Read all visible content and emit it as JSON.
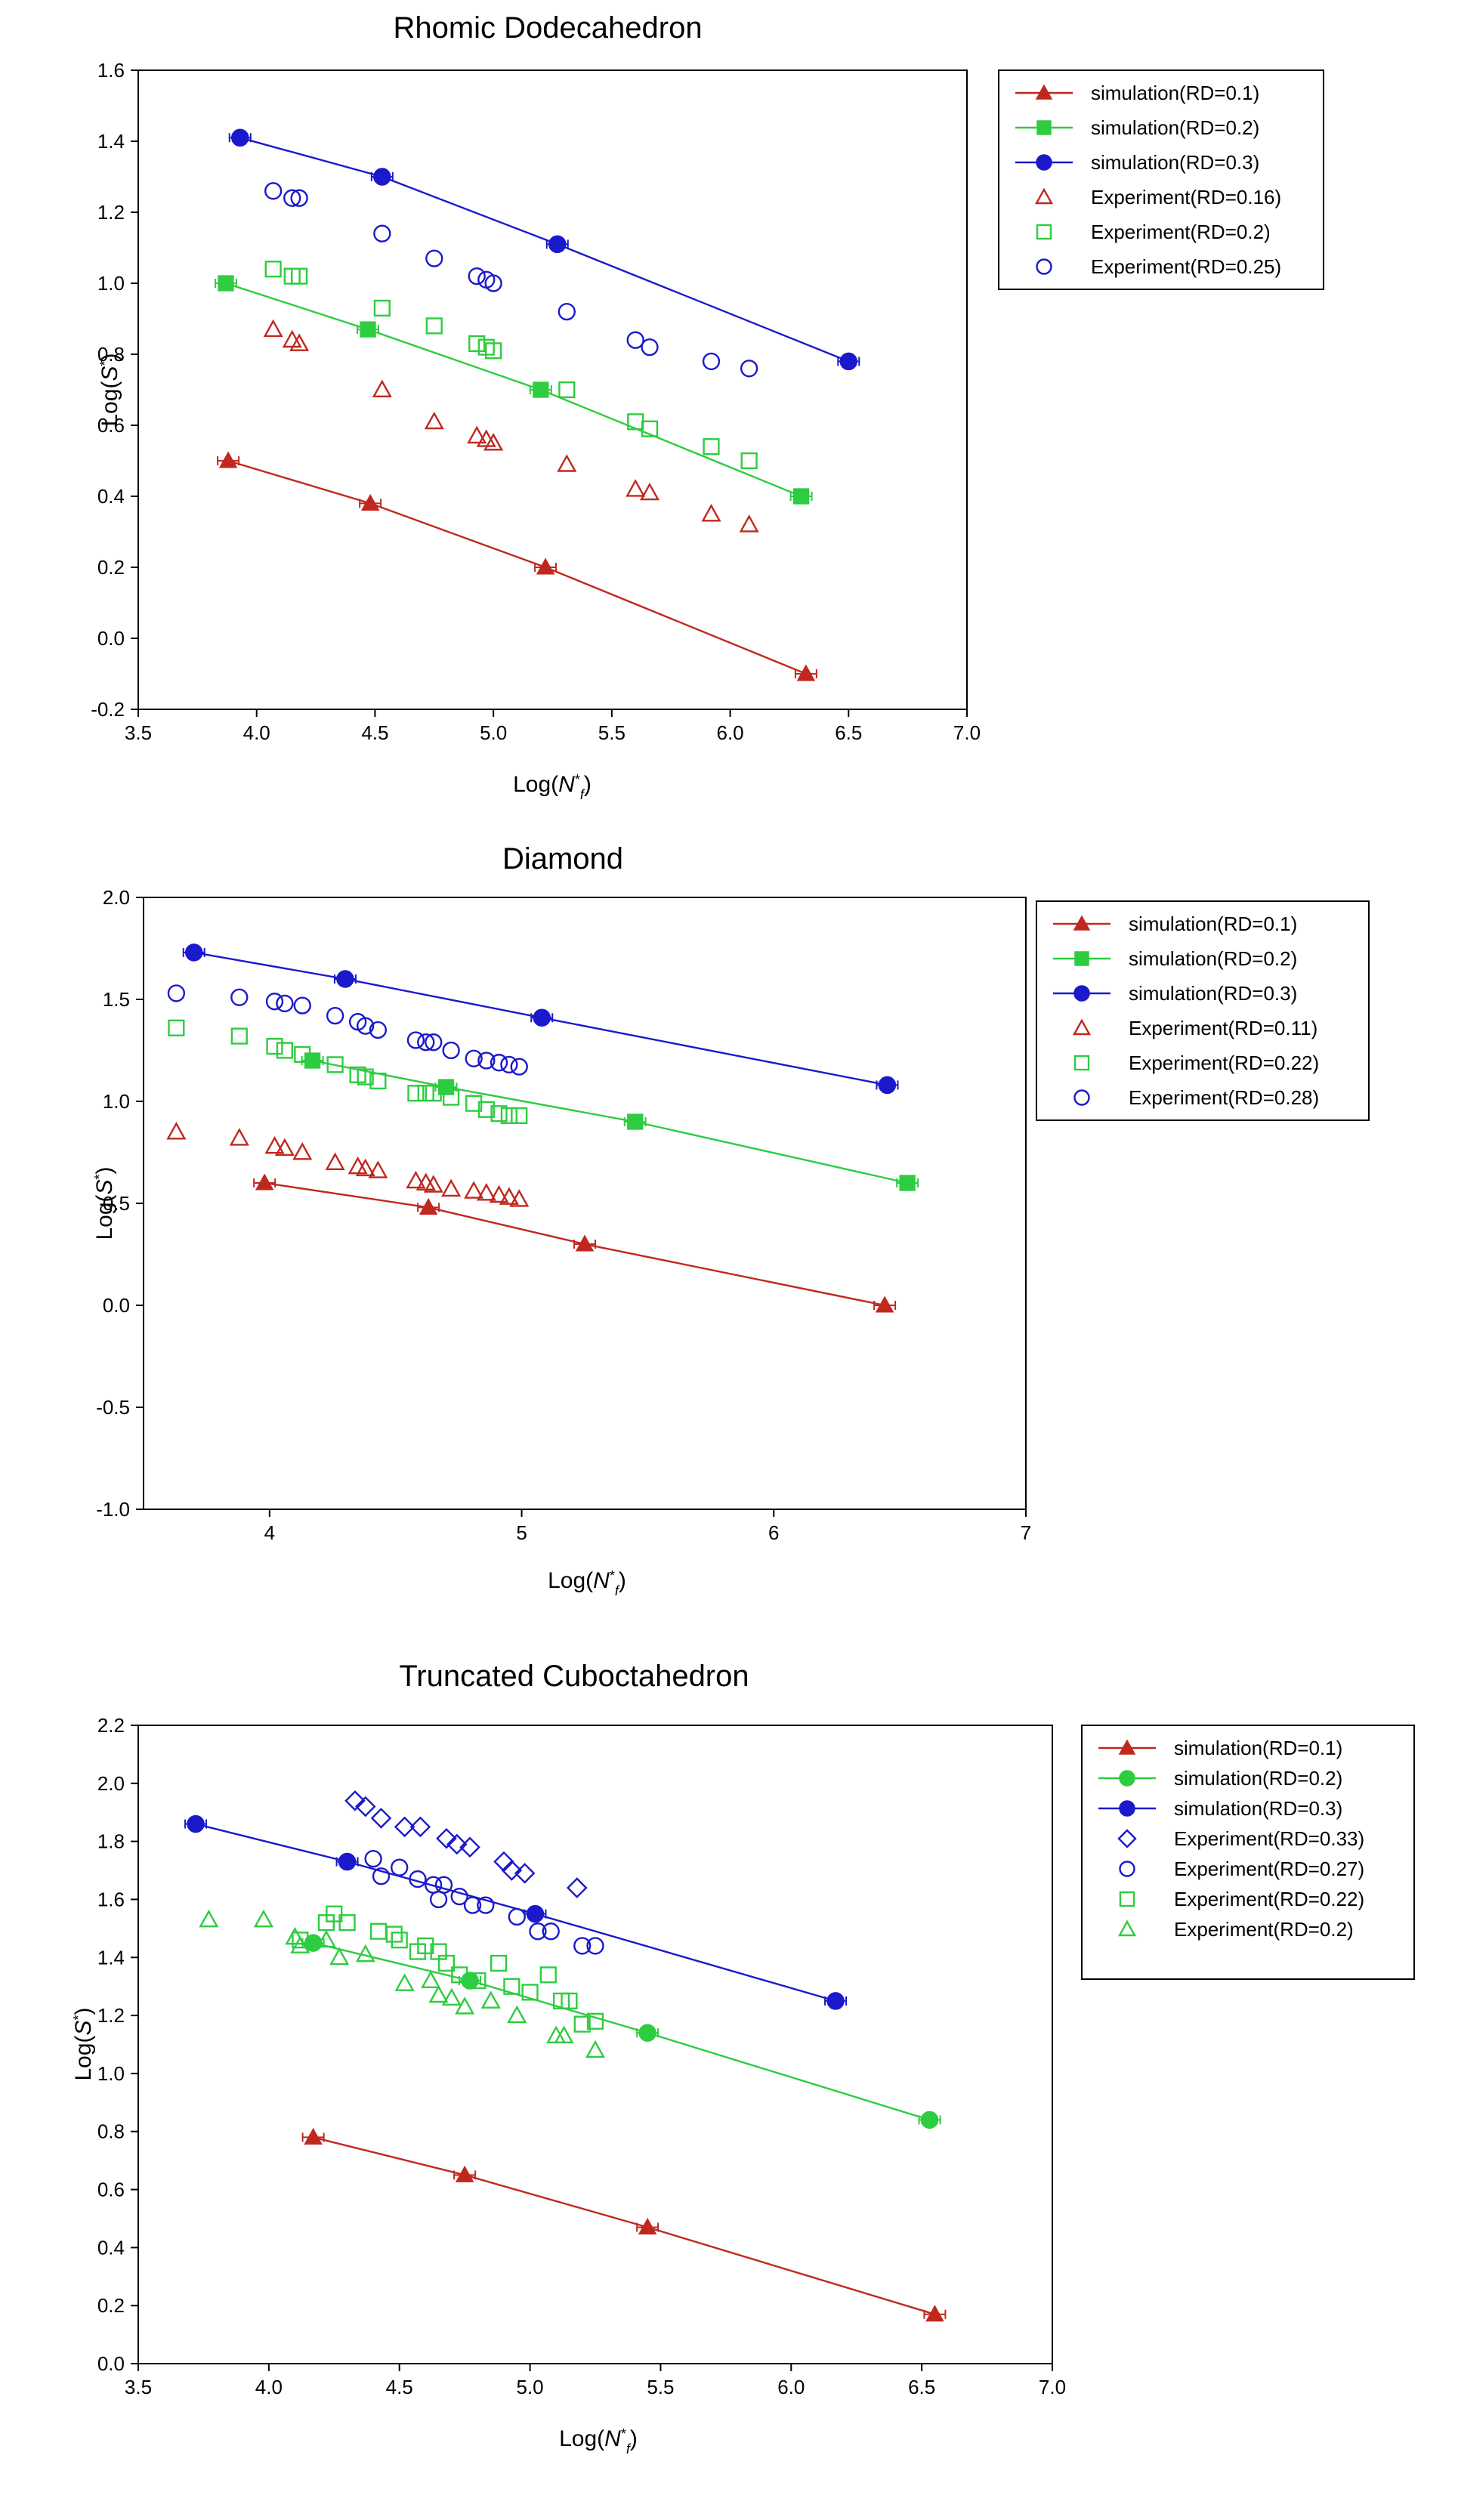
{
  "chart_data": [
    {
      "type": "scatter",
      "title": "Rhomic Dodecahedron",
      "xlabel": "Log(N*f)",
      "ylabel": "Log(S*)",
      "xlim": [
        3.5,
        7.0
      ],
      "ylim": [
        -0.2,
        1.6
      ],
      "xticks": [
        "3.5",
        "4.0",
        "4.5",
        "5.0",
        "5.5",
        "6.0",
        "6.5",
        "7.0"
      ],
      "yticks": [
        "-0.2",
        "0.0",
        "0.2",
        "0.4",
        "0.6",
        "0.8",
        "1.0",
        "1.2",
        "1.4",
        "1.6"
      ],
      "series": [
        {
          "name": "simulation(RD=0.1)",
          "kind": "line",
          "marker": "triangle-filled",
          "color": "#c0281e",
          "x": [
            3.88,
            4.48,
            5.22,
            6.32
          ],
          "y": [
            0.5,
            0.38,
            0.2,
            -0.1
          ]
        },
        {
          "name": "simulation(RD=0.2)",
          "kind": "line",
          "marker": "square-filled",
          "color": "#2ecc40",
          "x": [
            3.87,
            4.47,
            5.2,
            6.3
          ],
          "y": [
            1.0,
            0.87,
            0.7,
            0.4
          ]
        },
        {
          "name": "simulation(RD=0.3)",
          "kind": "line",
          "marker": "circle-filled",
          "color": "#1a1acc",
          "x": [
            3.93,
            4.53,
            5.27,
            6.5
          ],
          "y": [
            1.41,
            1.3,
            1.11,
            0.78
          ]
        },
        {
          "name": "Experiment(RD=0.16)",
          "kind": "scatter",
          "marker": "triangle-open",
          "color": "#c0281e",
          "x": [
            4.07,
            4.15,
            4.18,
            4.53,
            4.75,
            4.93,
            4.97,
            5.0,
            5.31,
            5.6,
            5.66,
            5.92,
            6.08
          ],
          "y": [
            0.87,
            0.84,
            0.83,
            0.7,
            0.61,
            0.57,
            0.56,
            0.55,
            0.49,
            0.42,
            0.41,
            0.35,
            0.32
          ]
        },
        {
          "name": "Experiment(RD=0.2)",
          "kind": "scatter",
          "marker": "square-open",
          "color": "#2ecc40",
          "x": [
            4.07,
            4.15,
            4.18,
            4.53,
            4.75,
            4.93,
            4.97,
            5.0,
            5.31,
            5.6,
            5.66,
            5.92,
            6.08
          ],
          "y": [
            1.04,
            1.02,
            1.02,
            0.93,
            0.88,
            0.83,
            0.82,
            0.81,
            0.7,
            0.61,
            0.59,
            0.54,
            0.5
          ]
        },
        {
          "name": "Experiment(RD=0.25)",
          "kind": "scatter",
          "marker": "circle-open",
          "color": "#1a1acc",
          "x": [
            4.07,
            4.15,
            4.18,
            4.53,
            4.75,
            4.93,
            4.97,
            5.0,
            5.31,
            5.6,
            5.66,
            5.92,
            6.08
          ],
          "y": [
            1.26,
            1.24,
            1.24,
            1.14,
            1.07,
            1.02,
            1.01,
            1.0,
            0.92,
            0.84,
            0.82,
            0.78,
            0.76
          ]
        }
      ]
    },
    {
      "type": "scatter",
      "title": "Diamond",
      "xlabel": "Log(N*f)",
      "ylabel": "Log(S*)",
      "xlim": [
        3.5,
        7.0
      ],
      "ylim": [
        -1.0,
        2.0
      ],
      "xticks": [
        "4",
        "5",
        "6",
        "7"
      ],
      "yticks": [
        "-1.0",
        "-0.5",
        "0.0",
        "0.5",
        "1.0",
        "1.5",
        "2.0"
      ],
      "series": [
        {
          "name": "simulation(RD=0.1)",
          "kind": "line",
          "marker": "triangle-filled",
          "color": "#c0281e",
          "x": [
            3.98,
            4.63,
            5.25,
            6.44
          ],
          "y": [
            0.6,
            0.48,
            0.3,
            0.0
          ]
        },
        {
          "name": "simulation(RD=0.2)",
          "kind": "line",
          "marker": "square-filled",
          "color": "#2ecc40",
          "x": [
            4.17,
            4.7,
            5.45,
            6.53
          ],
          "y": [
            1.2,
            1.07,
            0.9,
            0.6
          ]
        },
        {
          "name": "simulation(RD=0.3)",
          "kind": "line",
          "marker": "circle-filled",
          "color": "#1a1acc",
          "x": [
            3.7,
            4.3,
            5.08,
            6.45
          ],
          "y": [
            1.73,
            1.6,
            1.41,
            1.08
          ]
        },
        {
          "name": "Experiment(RD=0.11)",
          "kind": "scatter",
          "marker": "triangle-open",
          "color": "#c0281e",
          "x": [
            3.63,
            3.88,
            4.02,
            4.06,
            4.13,
            4.26,
            4.35,
            4.38,
            4.43,
            4.58,
            4.62,
            4.65,
            4.72,
            4.81,
            4.86,
            4.91,
            4.95,
            4.99
          ],
          "y": [
            0.85,
            0.82,
            0.78,
            0.77,
            0.75,
            0.7,
            0.68,
            0.67,
            0.66,
            0.61,
            0.6,
            0.59,
            0.57,
            0.56,
            0.55,
            0.54,
            0.53,
            0.52
          ]
        },
        {
          "name": "Experiment(RD=0.22)",
          "kind": "scatter",
          "marker": "square-open",
          "color": "#2ecc40",
          "x": [
            3.63,
            3.88,
            4.02,
            4.06,
            4.13,
            4.26,
            4.35,
            4.38,
            4.43,
            4.58,
            4.62,
            4.65,
            4.72,
            4.81,
            4.86,
            4.91,
            4.95,
            4.99
          ],
          "y": [
            1.36,
            1.32,
            1.27,
            1.25,
            1.23,
            1.18,
            1.13,
            1.12,
            1.1,
            1.04,
            1.04,
            1.04,
            1.02,
            0.99,
            0.96,
            0.94,
            0.93,
            0.93
          ]
        },
        {
          "name": "Experiment(RD=0.28)",
          "kind": "scatter",
          "marker": "circle-open",
          "color": "#1a1acc",
          "x": [
            3.63,
            3.88,
            4.02,
            4.06,
            4.13,
            4.26,
            4.35,
            4.38,
            4.43,
            4.58,
            4.62,
            4.65,
            4.72,
            4.81,
            4.86,
            4.91,
            4.95,
            4.99
          ],
          "y": [
            1.53,
            1.51,
            1.49,
            1.48,
            1.47,
            1.42,
            1.39,
            1.37,
            1.35,
            1.3,
            1.29,
            1.29,
            1.25,
            1.21,
            1.2,
            1.19,
            1.18,
            1.17
          ]
        }
      ]
    },
    {
      "type": "scatter",
      "title": "Truncated Cuboctahedron",
      "xlabel": "Log(N*f)",
      "ylabel": "Log(S*)",
      "xlim": [
        3.5,
        7.0
      ],
      "ylim": [
        0.0,
        2.2
      ],
      "xticks": [
        "3.5",
        "4.0",
        "4.5",
        "5.0",
        "5.5",
        "6.0",
        "6.5",
        "7.0"
      ],
      "yticks": [
        "0.0",
        "0.2",
        "0.4",
        "0.6",
        "0.8",
        "1.0",
        "1.2",
        "1.4",
        "1.6",
        "1.8",
        "2.0",
        "2.2"
      ],
      "series": [
        {
          "name": "simulation(RD=0.1)",
          "kind": "line",
          "marker": "triangle-filled",
          "color": "#c0281e",
          "x": [
            4.17,
            4.75,
            5.45,
            6.55
          ],
          "y": [
            0.78,
            0.65,
            0.47,
            0.17
          ]
        },
        {
          "name": "simulation(RD=0.2)",
          "kind": "line",
          "marker": "circle-filled",
          "color": "#2ecc40",
          "x": [
            4.17,
            4.77,
            5.45,
            6.53
          ],
          "y": [
            1.45,
            1.32,
            1.14,
            0.84
          ]
        },
        {
          "name": "simulation(RD=0.3)",
          "kind": "line",
          "marker": "circle-filled",
          "color": "#1a1acc",
          "x": [
            3.72,
            4.3,
            5.02,
            6.17
          ],
          "y": [
            1.86,
            1.73,
            1.55,
            1.25
          ]
        },
        {
          "name": "Experiment(RD=0.33)",
          "kind": "scatter",
          "marker": "diamond-open",
          "color": "#1a1acc",
          "x": [
            4.33,
            4.37,
            4.43,
            4.52,
            4.58,
            4.68,
            4.72,
            4.77,
            4.9,
            4.93,
            4.98,
            5.18
          ],
          "y": [
            1.94,
            1.92,
            1.88,
            1.85,
            1.85,
            1.81,
            1.79,
            1.78,
            1.73,
            1.7,
            1.69,
            1.64
          ]
        },
        {
          "name": "Experiment(RD=0.27)",
          "kind": "scatter",
          "marker": "circle-open",
          "color": "#1a1acc",
          "x": [
            4.3,
            4.4,
            4.43,
            4.5,
            4.57,
            4.63,
            4.65,
            4.67,
            4.73,
            4.78,
            4.83,
            4.95,
            5.03,
            5.08,
            5.2,
            5.25
          ],
          "y": [
            1.73,
            1.74,
            1.68,
            1.71,
            1.67,
            1.65,
            1.6,
            1.65,
            1.61,
            1.58,
            1.58,
            1.54,
            1.49,
            1.49,
            1.44,
            1.44
          ]
        },
        {
          "name": "Experiment(RD=0.22)",
          "kind": "scatter",
          "marker": "square-open",
          "color": "#2ecc40",
          "x": [
            4.12,
            4.22,
            4.25,
            4.3,
            4.42,
            4.48,
            4.5,
            4.57,
            4.6,
            4.65,
            4.68,
            4.73,
            4.8,
            4.88,
            4.93,
            5.0,
            5.07,
            5.12,
            5.15,
            5.2,
            5.25
          ],
          "y": [
            1.46,
            1.52,
            1.55,
            1.52,
            1.49,
            1.48,
            1.46,
            1.42,
            1.44,
            1.42,
            1.38,
            1.34,
            1.32,
            1.38,
            1.3,
            1.28,
            1.34,
            1.25,
            1.25,
            1.17,
            1.18
          ]
        },
        {
          "name": "Experiment(RD=0.2)",
          "kind": "scatter",
          "marker": "triangle-open",
          "color": "#2ecc40",
          "x": [
            3.77,
            3.98,
            4.1,
            4.12,
            4.22,
            4.27,
            4.37,
            4.52,
            4.62,
            4.65,
            4.7,
            4.75,
            4.85,
            4.95,
            5.1,
            5.13,
            5.25
          ],
          "y": [
            1.53,
            1.53,
            1.47,
            1.44,
            1.46,
            1.4,
            1.41,
            1.31,
            1.32,
            1.27,
            1.26,
            1.23,
            1.25,
            1.2,
            1.13,
            1.13,
            1.08
          ]
        }
      ]
    }
  ]
}
